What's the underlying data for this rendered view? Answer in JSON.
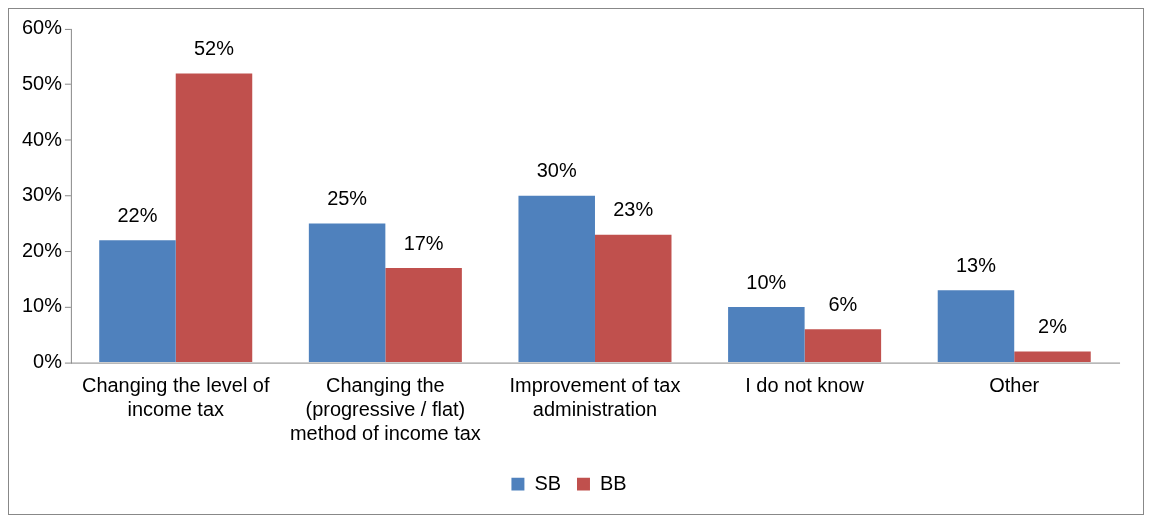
{
  "chart_data": {
    "type": "bar",
    "categories": [
      "Changing the level of income tax",
      "Changing the (progressive / flat) method of income tax",
      "Improvement of tax administration",
      "I do not know",
      "Other"
    ],
    "series": [
      {
        "name": "SB",
        "color": "#4f81bd",
        "values": [
          22,
          25,
          30,
          10,
          13
        ],
        "value_labels": [
          "22%",
          "25%",
          "30%",
          "10%",
          "13%"
        ]
      },
      {
        "name": "BB",
        "color": "#c0504d",
        "values": [
          52,
          17,
          23,
          6,
          2
        ],
        "value_labels": [
          "52%",
          "17%",
          "23%",
          "6%",
          "2%"
        ]
      }
    ],
    "ylim": [
      0,
      60
    ],
    "yticks": [
      {
        "value": 0,
        "label": "0%"
      },
      {
        "value": 10,
        "label": "10%"
      },
      {
        "value": 20,
        "label": "20%"
      },
      {
        "value": 30,
        "label": "30%"
      },
      {
        "value": 40,
        "label": "40%"
      },
      {
        "value": 50,
        "label": "50%"
      },
      {
        "value": 60,
        "label": "60%"
      }
    ],
    "grid": false,
    "legend": "bottom"
  }
}
